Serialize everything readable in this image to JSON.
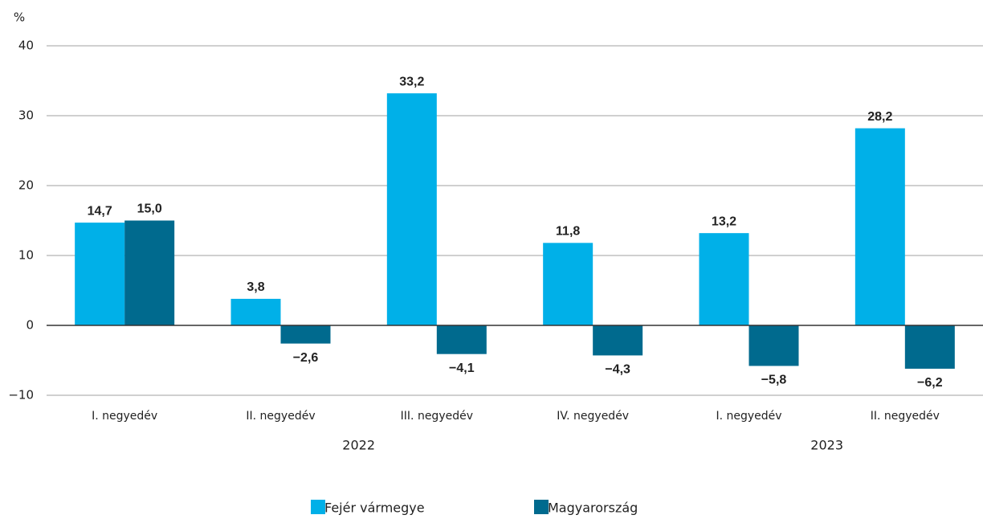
{
  "chart_data": {
    "type": "bar",
    "y_unit": "%",
    "categories": [
      "I. negyedév",
      "II. negyedév",
      "III. negyedév",
      "IV. negyedév",
      "I. negyedév",
      "II. negyedév"
    ],
    "x_groups": [
      {
        "label": "2022",
        "start": 0,
        "end": 3
      },
      {
        "label": "2023",
        "start": 4,
        "end": 5
      }
    ],
    "series": [
      {
        "name": "Fejér vármegye",
        "color": "#00b0e8",
        "values": [
          14.7,
          3.8,
          33.2,
          11.8,
          13.2,
          28.2
        ],
        "value_labels": [
          "14,7",
          "3,8",
          "33,2",
          "11,8",
          "13,2",
          "28,2"
        ]
      },
      {
        "name": "Magyarország",
        "color": "#006a8e",
        "values": [
          15.0,
          -2.6,
          -4.1,
          -4.3,
          -5.8,
          -6.2
        ],
        "value_labels": [
          "15,0",
          "−2,6",
          "−4,1",
          "−4,3",
          "−5,8",
          "−6,2"
        ]
      }
    ],
    "ylim": [
      -10,
      40
    ],
    "yticks": [
      {
        "value": -10,
        "label": "−10"
      },
      0,
      10,
      20,
      30,
      40
    ],
    "grid": true,
    "legend": "bottom"
  }
}
